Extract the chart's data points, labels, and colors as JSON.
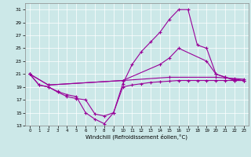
{
  "xlabel": "Windchill (Refroidissement éolien,°C)",
  "bg_color": "#cce8e8",
  "line_color": "#990099",
  "xlim": [
    -0.5,
    23.5
  ],
  "ylim": [
    13,
    32
  ],
  "yticks": [
    13,
    15,
    17,
    19,
    21,
    23,
    25,
    27,
    29,
    31
  ],
  "xticks": [
    0,
    1,
    2,
    3,
    4,
    5,
    6,
    7,
    8,
    9,
    10,
    11,
    12,
    13,
    14,
    15,
    16,
    17,
    18,
    19,
    20,
    21,
    22,
    23
  ],
  "series": [
    {
      "x": [
        0,
        1,
        2,
        3,
        4,
        5,
        6,
        7,
        8,
        9,
        10,
        11,
        12,
        13,
        14,
        15,
        16,
        17,
        18,
        19,
        20,
        21,
        22,
        23
      ],
      "y": [
        21,
        19.3,
        19,
        18.3,
        17.8,
        17.5,
        15.0,
        14.0,
        13.3,
        15.0,
        19.0,
        19.3,
        19.5,
        19.7,
        19.8,
        19.9,
        20.0,
        20.0,
        20.0,
        20.0,
        20.0,
        20.0,
        20.0,
        20.0
      ]
    },
    {
      "x": [
        0,
        1,
        2,
        3,
        4,
        5,
        6,
        7,
        8,
        9,
        10,
        11,
        12,
        13,
        14,
        15,
        16,
        17,
        18,
        19,
        20,
        21,
        22,
        23
      ],
      "y": [
        21,
        19.3,
        19,
        18.2,
        17.5,
        17.2,
        17.0,
        14.8,
        14.5,
        15.0,
        19.5,
        22.5,
        24.5,
        26.0,
        27.5,
        29.5,
        31.0,
        31.0,
        25.5,
        25.0,
        21.0,
        20.5,
        20.0,
        20.0
      ]
    },
    {
      "x": [
        0,
        2,
        10,
        14,
        15,
        16,
        19,
        20,
        21,
        22,
        23
      ],
      "y": [
        21,
        19.3,
        20.0,
        22.5,
        23.5,
        25.0,
        23.0,
        21.0,
        20.5,
        20.2,
        20.0
      ]
    },
    {
      "x": [
        0,
        2,
        10,
        15,
        20,
        21,
        22,
        23
      ],
      "y": [
        21,
        19.3,
        20.0,
        20.5,
        20.5,
        20.4,
        20.3,
        20.2
      ]
    }
  ]
}
